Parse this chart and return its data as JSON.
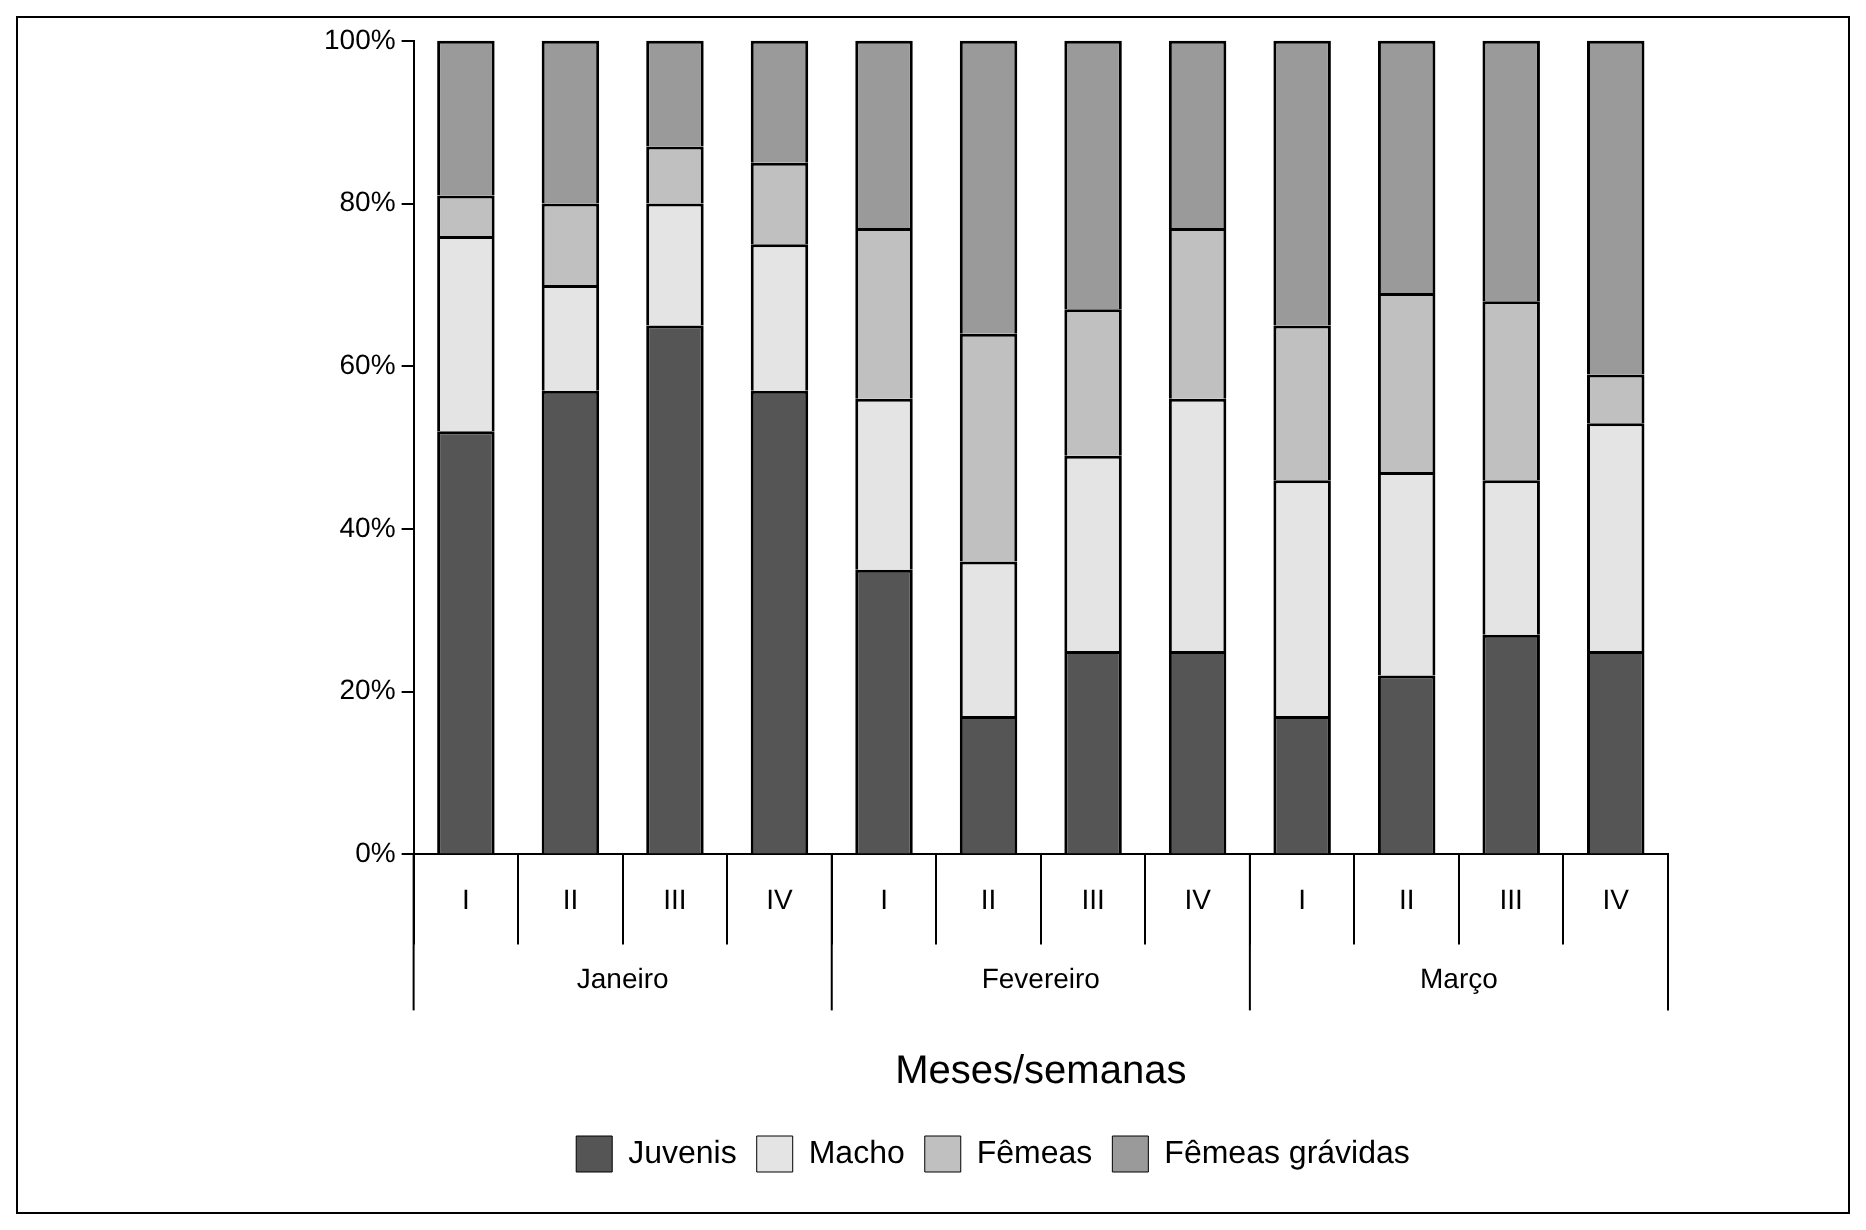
{
  "chart_data": {
    "type": "bar",
    "stacked": true,
    "xlabel": "Meses/semanas",
    "categories": [
      "I",
      "II",
      "III",
      "IV",
      "I",
      "II",
      "III",
      "IV",
      "I",
      "II",
      "III",
      "IV"
    ],
    "annotations": [
      "Janeiro",
      "Fevereiro",
      "Março"
    ],
    "series": [
      {
        "name": "Juvenis",
        "color": "#555555",
        "values": [
          52,
          57,
          65,
          57,
          35,
          17,
          25,
          25,
          17,
          22,
          27,
          25
        ]
      },
      {
        "name": "Macho",
        "color": "#e4e4e4",
        "values": [
          24,
          13,
          15,
          18,
          21,
          19,
          24,
          31,
          29,
          25,
          19,
          28
        ]
      },
      {
        "name": "Fêmeas",
        "color": "#c0c0c0",
        "values": [
          5,
          10,
          7,
          10,
          21,
          28,
          18,
          21,
          19,
          22,
          22,
          6
        ]
      },
      {
        "name": "Fêmeas grávidas",
        "color": "#9a9a9a",
        "values": [
          19,
          20,
          13,
          15,
          23,
          36,
          33,
          23,
          35,
          31,
          32,
          41
        ]
      }
    ],
    "ylim": [
      0,
      100
    ],
    "yticks": [
      {
        "value": 0,
        "label": "0%"
      },
      {
        "value": 20,
        "label": "20%"
      },
      {
        "value": 40,
        "label": "40%"
      },
      {
        "value": 60,
        "label": "60%"
      },
      {
        "value": 80,
        "label": "80%"
      },
      {
        "value": 100,
        "label": "100%"
      }
    ],
    "grid": false,
    "legend": "bottom"
  }
}
